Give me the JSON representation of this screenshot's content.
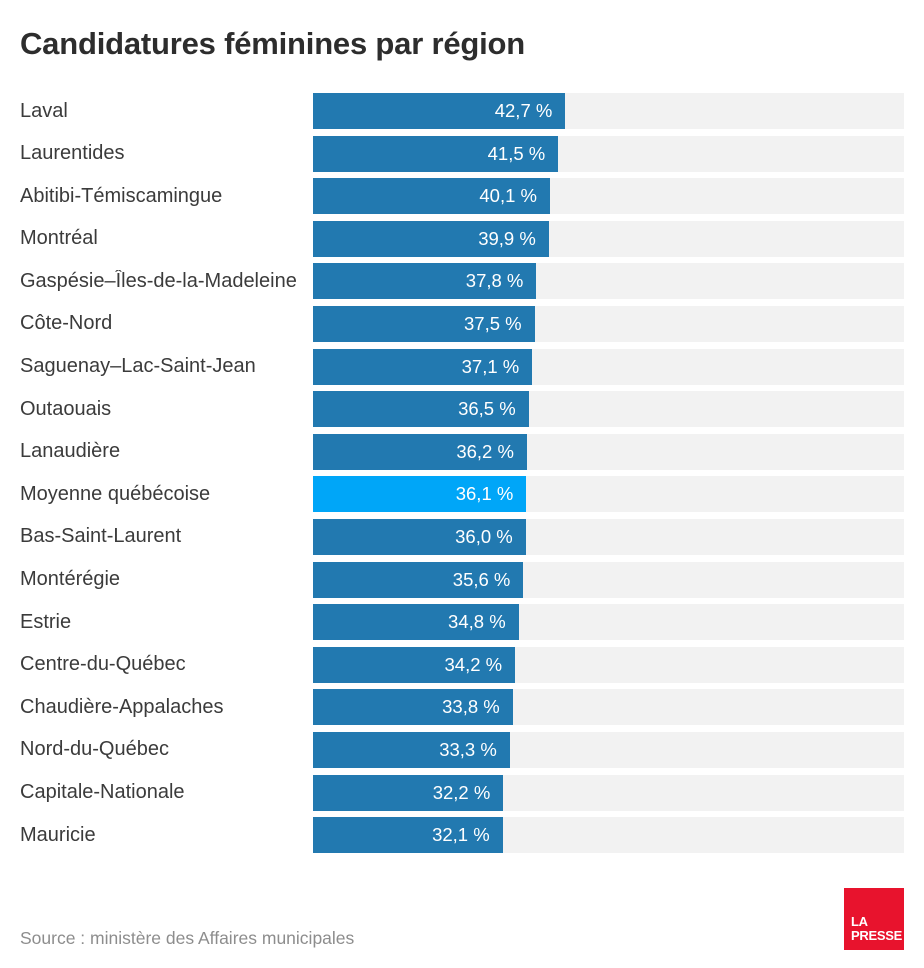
{
  "title": "Candidatures féminines par région",
  "source": "Source : ministère des Affaires municipales",
  "logo": {
    "line1": "LA",
    "line2": "PRESSE"
  },
  "colors": {
    "bar": "#2279b0",
    "highlight": "#00a6f8",
    "track": "#f2f2f2",
    "title": "#2d2d2d",
    "label": "#3b3b3b",
    "source": "#8d8d8d",
    "logo_red": "#e8132d"
  },
  "chart_data": {
    "type": "bar",
    "orientation": "horizontal",
    "title": "Candidatures féminines par région",
    "xlabel": "",
    "ylabel": "",
    "xlim": [
      0,
      100
    ],
    "grid": false,
    "legend": false,
    "value_format": "comma-decimal percent, e.g. 42,7 %",
    "highlight_category": "Moyenne québécoise",
    "categories": [
      "Laval",
      "Laurentides",
      "Abitibi-Témiscamingue",
      "Montréal",
      "Gaspésie–Îles-de-la-Madeleine",
      "Côte-Nord",
      "Saguenay–Lac-Saint-Jean",
      "Outaouais",
      "Lanaudière",
      "Moyenne québécoise",
      "Bas-Saint-Laurent",
      "Montérégie",
      "Estrie",
      "Centre-du-Québec",
      "Chaudière-Appalaches",
      "Nord-du-Québec",
      "Capitale-Nationale",
      "Mauricie"
    ],
    "values": [
      42.7,
      41.5,
      40.1,
      39.9,
      37.8,
      37.5,
      37.1,
      36.5,
      36.2,
      36.1,
      36.0,
      35.6,
      34.8,
      34.2,
      33.8,
      33.3,
      32.2,
      32.1
    ],
    "value_labels": [
      "42,7 %",
      "41,5 %",
      "40,1 %",
      "39,9 %",
      "37,8 %",
      "37,5 %",
      "37,1 %",
      "36,5 %",
      "36,2 %",
      "36,1 %",
      "36,0 %",
      "35,6 %",
      "34,8 %",
      "34,2 %",
      "33,8 %",
      "33,3 %",
      "32,2 %",
      "32,1 %"
    ]
  }
}
